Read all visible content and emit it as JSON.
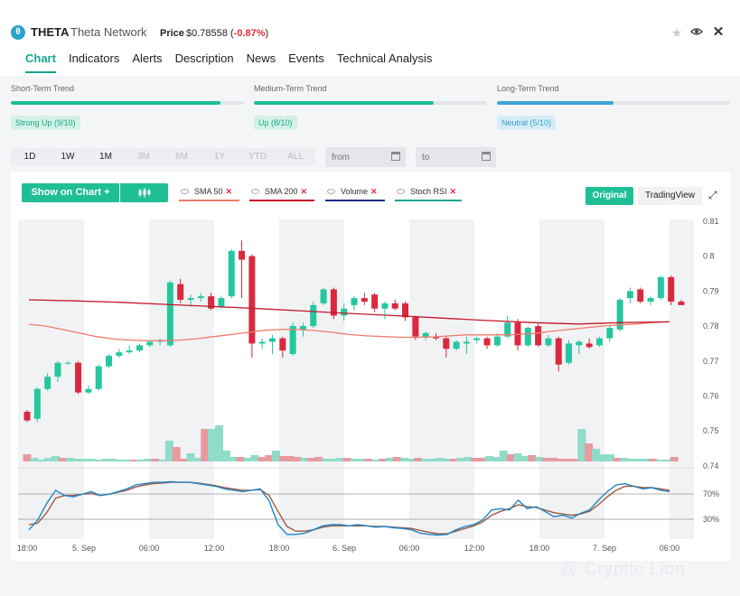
{
  "header": {
    "coin_icon": "theta-coin-icon",
    "symbol": "THETA",
    "name": "Theta Network",
    "price_label": "Price",
    "price_value": "$0.78558",
    "price_change": "-0.87%",
    "icons": [
      "star-icon",
      "eye-icon",
      "close-icon"
    ]
  },
  "tabs": [
    {
      "label": "Chart",
      "active": true
    },
    {
      "label": "Indicators"
    },
    {
      "label": "Alerts"
    },
    {
      "label": "Description"
    },
    {
      "label": "News"
    },
    {
      "label": "Events"
    },
    {
      "label": "Technical Analysis"
    }
  ],
  "trends": [
    {
      "title": "Short-Term Trend",
      "badge": "Strong Up (9/10)",
      "level": 0.9,
      "color": "#1fbf96",
      "badge_bg": "#d3f1e6",
      "badge_fg": "#19a887"
    },
    {
      "title": "Medium-Term Trend",
      "badge": "Up (8/10)",
      "level": 0.77,
      "color": "#1fbf96",
      "badge_bg": "#d3f1e6",
      "badge_fg": "#19a887"
    },
    {
      "title": "Long-Term Trend",
      "badge": "Neutral (5/10)",
      "level": 0.5,
      "color": "#3ba6d8",
      "badge_bg": "#d6edf7",
      "badge_fg": "#3a9cc9"
    }
  ],
  "ranges": [
    {
      "label": "1D",
      "enabled": true
    },
    {
      "label": "1W",
      "enabled": true
    },
    {
      "label": "1M",
      "enabled": true
    },
    {
      "label": "3M",
      "enabled": false
    },
    {
      "label": "6M",
      "enabled": false
    },
    {
      "label": "1Y",
      "enabled": false
    },
    {
      "label": "YTD",
      "enabled": false
    },
    {
      "label": "ALL",
      "enabled": false
    }
  ],
  "date_from_placeholder": "from",
  "date_to_placeholder": "to",
  "toolbar": {
    "show_on_chart": "Show on Chart +",
    "original": "Original",
    "tradingview": "TradingView",
    "indicators": [
      {
        "label": "SMA 50",
        "color": "#f07a6a"
      },
      {
        "label": "SMA 200",
        "color": "#c4182a"
      },
      {
        "label": "Volume",
        "color": "#1a2e8a"
      },
      {
        "label": "Stoch RSI",
        "color": "#1aa58f"
      }
    ]
  },
  "chart_data": {
    "type": "candlestick",
    "up_color": "#26c6a0",
    "down_color": "#d9293e",
    "y_ticks": [
      "0.81",
      "0.8",
      "0.79",
      "0.78",
      "0.77",
      "0.76",
      "0.75",
      "0.74"
    ],
    "ylim": [
      0.7405,
      0.8105
    ],
    "x_tick_labels": [
      "18:00",
      "5. Sep",
      "06:00",
      "12:00",
      "18:00",
      "6. Sep",
      "06:00",
      "12:00",
      "18:00",
      "7. Sep",
      "06:00"
    ],
    "candles": [
      [
        0.7555,
        0.756,
        0.7525,
        0.753
      ],
      [
        0.7535,
        0.7625,
        0.7525,
        0.762
      ],
      [
        0.762,
        0.7665,
        0.7615,
        0.7655
      ],
      [
        0.7655,
        0.77,
        0.764,
        0.7695
      ],
      [
        0.7695,
        0.77,
        0.769,
        0.7695
      ],
      [
        0.7695,
        0.77,
        0.7605,
        0.761
      ],
      [
        0.761,
        0.763,
        0.7605,
        0.762
      ],
      [
        0.762,
        0.769,
        0.7615,
        0.7685
      ],
      [
        0.7685,
        0.772,
        0.768,
        0.7715
      ],
      [
        0.7715,
        0.7735,
        0.771,
        0.7725
      ],
      [
        0.7725,
        0.7745,
        0.772,
        0.773
      ],
      [
        0.773,
        0.775,
        0.7725,
        0.7745
      ],
      [
        0.7745,
        0.776,
        0.774,
        0.7755
      ],
      [
        0.7755,
        0.7765,
        0.7745,
        0.776
      ],
      [
        0.7745,
        0.793,
        0.774,
        0.7925
      ],
      [
        0.792,
        0.7935,
        0.7865,
        0.7875
      ],
      [
        0.7875,
        0.789,
        0.7855,
        0.788
      ],
      [
        0.788,
        0.7895,
        0.787,
        0.7885
      ],
      [
        0.7885,
        0.7895,
        0.7845,
        0.785
      ],
      [
        0.7855,
        0.7885,
        0.785,
        0.788
      ],
      [
        0.7885,
        0.802,
        0.788,
        0.8015
      ],
      [
        0.8015,
        0.8045,
        0.788,
        0.799
      ],
      [
        0.8,
        0.8005,
        0.771,
        0.775
      ],
      [
        0.775,
        0.7765,
        0.7735,
        0.7755
      ],
      [
        0.7755,
        0.7775,
        0.772,
        0.7765
      ],
      [
        0.7765,
        0.777,
        0.771,
        0.773
      ],
      [
        0.772,
        0.781,
        0.7715,
        0.78
      ],
      [
        0.779,
        0.781,
        0.777,
        0.78
      ],
      [
        0.78,
        0.787,
        0.7795,
        0.786
      ],
      [
        0.7865,
        0.791,
        0.786,
        0.7905
      ],
      [
        0.7905,
        0.791,
        0.782,
        0.783
      ],
      [
        0.783,
        0.7865,
        0.7815,
        0.785
      ],
      [
        0.786,
        0.7885,
        0.7845,
        0.788
      ],
      [
        0.788,
        0.7895,
        0.786,
        0.787
      ],
      [
        0.789,
        0.7895,
        0.784,
        0.785
      ],
      [
        0.785,
        0.787,
        0.782,
        0.7865
      ],
      [
        0.7865,
        0.7875,
        0.7845,
        0.785
      ],
      [
        0.7865,
        0.787,
        0.7815,
        0.7825
      ],
      [
        0.7825,
        0.783,
        0.776,
        0.777
      ],
      [
        0.777,
        0.7785,
        0.776,
        0.778
      ],
      [
        0.777,
        0.778,
        0.776,
        0.7765
      ],
      [
        0.7765,
        0.777,
        0.771,
        0.7735
      ],
      [
        0.7735,
        0.776,
        0.773,
        0.7755
      ],
      [
        0.775,
        0.777,
        0.772,
        0.7755
      ],
      [
        0.776,
        0.777,
        0.775,
        0.7765
      ],
      [
        0.7765,
        0.777,
        0.7735,
        0.7745
      ],
      [
        0.7745,
        0.778,
        0.774,
        0.777
      ],
      [
        0.777,
        0.783,
        0.7765,
        0.781
      ],
      [
        0.781,
        0.782,
        0.773,
        0.7745
      ],
      [
        0.7745,
        0.78,
        0.774,
        0.7795
      ],
      [
        0.78,
        0.781,
        0.774,
        0.7745
      ],
      [
        0.7745,
        0.7775,
        0.774,
        0.7765
      ],
      [
        0.7765,
        0.777,
        0.767,
        0.769
      ],
      [
        0.7695,
        0.776,
        0.769,
        0.775
      ],
      [
        0.7745,
        0.776,
        0.772,
        0.7755
      ],
      [
        0.775,
        0.7765,
        0.7735,
        0.774
      ],
      [
        0.7745,
        0.777,
        0.774,
        0.7765
      ],
      [
        0.7765,
        0.78,
        0.7755,
        0.7795
      ],
      [
        0.779,
        0.788,
        0.7785,
        0.7875
      ],
      [
        0.788,
        0.791,
        0.7865,
        0.79
      ],
      [
        0.7905,
        0.791,
        0.7865,
        0.787
      ],
      [
        0.787,
        0.7885,
        0.786,
        0.788
      ],
      [
        0.788,
        0.7945,
        0.7875,
        0.794
      ],
      [
        0.794,
        0.7945,
        0.786,
        0.787
      ],
      [
        0.787,
        0.7875,
        0.786,
        0.786
      ]
    ],
    "sma50": [
      0.7805,
      0.78,
      0.779,
      0.778,
      0.777,
      0.7763,
      0.776,
      0.7758,
      0.7758,
      0.776,
      0.7764,
      0.777,
      0.7776,
      0.7782,
      0.7788,
      0.779,
      0.779,
      0.7787,
      0.7782,
      0.7776,
      0.7772,
      0.777,
      0.7768,
      0.7768,
      0.7769,
      0.7772,
      0.7775,
      0.7775,
      0.7775,
      0.7776,
      0.7779,
      0.7785,
      0.779,
      0.7795,
      0.78,
      0.7803,
      0.7806,
      0.781,
      0.7812
    ],
    "sma200": [
      0.7875,
      0.7872,
      0.7868,
      0.7862,
      0.7856,
      0.785,
      0.7843,
      0.7836,
      0.783,
      0.7823,
      0.7816,
      0.781,
      0.7806,
      0.781,
      0.7812
    ],
    "volume": [
      8,
      4,
      2,
      4,
      6,
      4,
      4,
      3,
      3,
      3,
      2,
      3,
      3,
      2,
      2,
      2,
      2,
      3,
      3,
      2,
      23,
      16,
      3,
      9,
      4,
      36,
      36,
      40,
      12,
      5,
      5,
      4,
      7,
      5,
      7,
      12,
      6,
      6,
      5,
      4,
      4,
      5,
      3,
      3,
      4,
      4,
      3,
      3,
      3,
      2,
      3,
      4,
      5,
      4,
      3,
      4,
      3,
      3,
      4,
      3,
      3,
      4,
      5,
      4,
      4,
      6,
      5,
      12,
      8,
      9,
      6,
      7,
      5,
      4,
      4,
      3,
      3,
      3,
      36,
      20,
      14,
      8,
      8,
      4,
      4,
      3,
      3,
      3,
      3,
      2,
      2,
      5
    ],
    "stoch_k": [
      10,
      25,
      50,
      70,
      62,
      60,
      64,
      68,
      62,
      64,
      68,
      72,
      78,
      80,
      82,
      82,
      83,
      82,
      82,
      80,
      78,
      76,
      72,
      70,
      68,
      70,
      72,
      54,
      18,
      3,
      3,
      5,
      10,
      16,
      18,
      18,
      16,
      18,
      16,
      14,
      15,
      13,
      12,
      10,
      5,
      3,
      2,
      3,
      10,
      15,
      18,
      25,
      40,
      42,
      40,
      55,
      42,
      45,
      38,
      30,
      32,
      28,
      35,
      40,
      55,
      68,
      78,
      80,
      76,
      72,
      74,
      70,
      68
    ],
    "stoch_d": [
      18,
      20,
      36,
      58,
      62,
      62,
      64,
      65,
      62,
      64,
      67,
      70,
      75,
      78,
      80,
      81,
      82,
      82,
      82,
      81,
      79,
      77,
      74,
      72,
      70,
      70,
      71,
      62,
      38,
      15,
      8,
      8,
      10,
      14,
      16,
      16,
      16,
      16,
      16,
      15,
      15,
      14,
      13,
      12,
      9,
      6,
      4,
      4,
      8,
      12,
      16,
      22,
      32,
      38,
      42,
      48,
      45,
      44,
      40,
      36,
      34,
      32,
      34,
      38,
      48,
      60,
      70,
      76,
      76,
      74,
      74,
      72,
      70
    ],
    "stoch_levels": [
      "70%",
      "30%"
    ],
    "up_flags": [
      0,
      1,
      1,
      1,
      1,
      0,
      1,
      1,
      1,
      1,
      1,
      1,
      1,
      1,
      1,
      0,
      1,
      1,
      0,
      1,
      1,
      0,
      0,
      1,
      1,
      0,
      1,
      1,
      1,
      1,
      0,
      1,
      1,
      0,
      0,
      1,
      0,
      0,
      0,
      1,
      0,
      0,
      1,
      1,
      1,
      0,
      1,
      1,
      0,
      1,
      0,
      1,
      0,
      1,
      1,
      0,
      1,
      1,
      1,
      1,
      0,
      1,
      1,
      0,
      0,
      1,
      1,
      1,
      0,
      1,
      1,
      0,
      1,
      0,
      0,
      0,
      0,
      0,
      1,
      0,
      1,
      1,
      1,
      0,
      1,
      1,
      1,
      1,
      0,
      1,
      1,
      0
    ]
  },
  "watermark": "@ Cryptic Lion"
}
